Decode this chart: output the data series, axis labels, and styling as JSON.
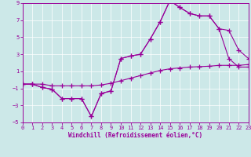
{
  "bg_color": "#cce8e8",
  "line_color": "#990099",
  "xlabel": "Windchill (Refroidissement éolien,°C)",
  "xlim": [
    0,
    23
  ],
  "ylim": [
    -5,
    9
  ],
  "xticks": [
    0,
    1,
    2,
    3,
    4,
    5,
    6,
    7,
    8,
    9,
    10,
    11,
    12,
    13,
    14,
    15,
    16,
    17,
    18,
    19,
    20,
    21,
    22,
    23
  ],
  "yticks": [
    -5,
    -3,
    -1,
    1,
    3,
    5,
    7,
    9
  ],
  "line1": {
    "x": [
      0,
      1,
      2,
      3,
      4,
      5,
      6,
      7,
      8,
      9,
      10,
      11,
      12,
      13,
      14,
      15,
      16,
      17,
      18,
      19,
      20,
      21,
      22,
      23
    ],
    "y": [
      -0.5,
      -0.5,
      -0.5,
      -0.7,
      -0.7,
      -0.7,
      -0.7,
      -0.7,
      -0.6,
      -0.4,
      -0.1,
      0.2,
      0.5,
      0.8,
      1.1,
      1.3,
      1.4,
      1.5,
      1.55,
      1.6,
      1.7,
      1.7,
      1.7,
      1.8
    ]
  },
  "line2": {
    "x": [
      0,
      1,
      2,
      3,
      4,
      5,
      6,
      7,
      8,
      9,
      10,
      11,
      12,
      13,
      14,
      15,
      16,
      17,
      18,
      19,
      20,
      21,
      22,
      23
    ],
    "y": [
      -0.5,
      -0.5,
      -0.9,
      -1.1,
      -2.2,
      -2.2,
      -2.2,
      -4.3,
      -1.6,
      -1.3,
      2.5,
      2.8,
      3.0,
      4.8,
      6.8,
      9.3,
      8.5,
      7.8,
      7.5,
      7.5,
      6.0,
      5.8,
      3.5,
      2.5
    ]
  },
  "line3": {
    "x": [
      0,
      1,
      2,
      3,
      4,
      5,
      6,
      7,
      8,
      9,
      10,
      11,
      12,
      13,
      14,
      15,
      16,
      17,
      18,
      19,
      20,
      21,
      22,
      23
    ],
    "y": [
      -0.5,
      -0.5,
      -0.9,
      -1.1,
      -2.2,
      -2.2,
      -2.2,
      -4.3,
      -1.6,
      -1.3,
      2.5,
      2.8,
      3.0,
      4.8,
      6.8,
      9.3,
      8.5,
      7.8,
      7.5,
      7.5,
      6.0,
      2.5,
      1.5,
      1.5
    ]
  },
  "grid_color": "white",
  "grid_lw": 0.5,
  "line_lw": 0.8,
  "marker_size": 3,
  "tick_fontsize": 5,
  "xlabel_fontsize": 5.5
}
